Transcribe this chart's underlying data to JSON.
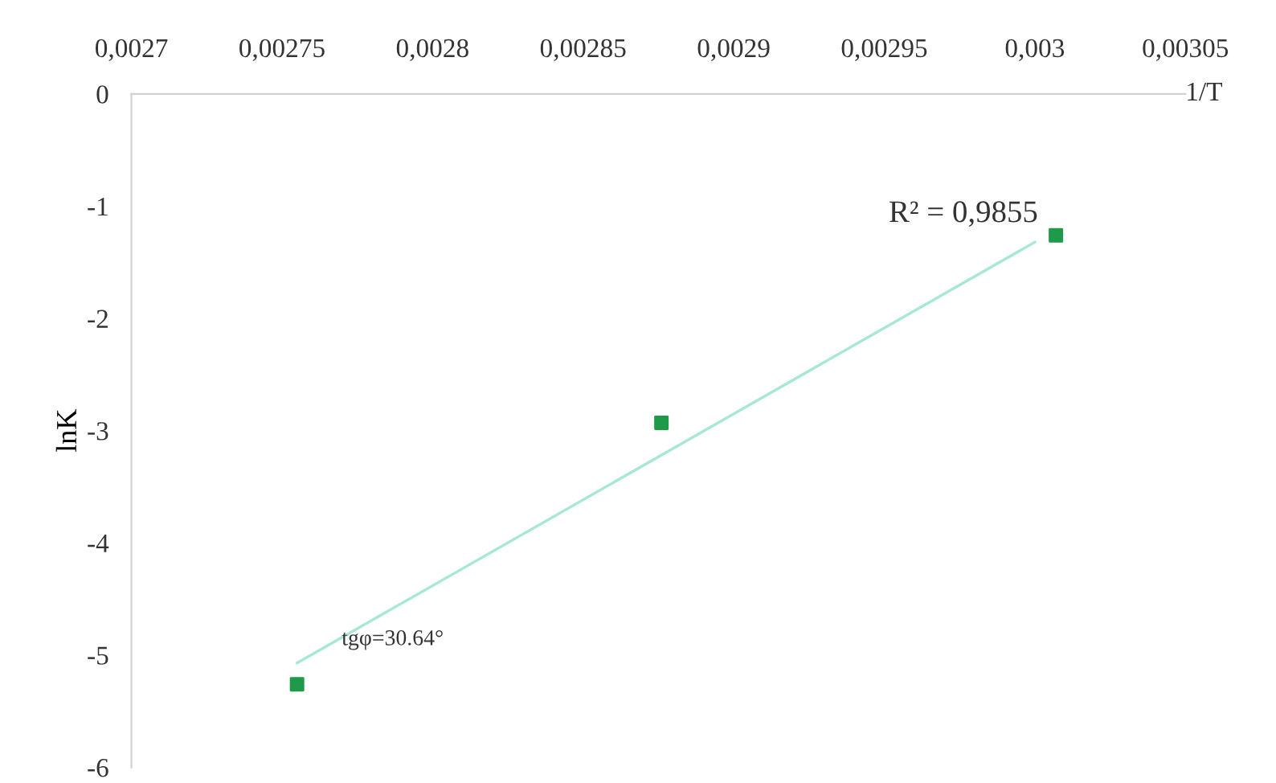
{
  "chart_data": {
    "type": "scatter",
    "xlabel": "1/T",
    "ylabel": "lnK",
    "xlim": [
      0.0027,
      0.00305
    ],
    "xticks": [
      {
        "value": 0.0027,
        "label": "0,0027"
      },
      {
        "value": 0.00275,
        "label": "0,00275"
      },
      {
        "value": 0.0028,
        "label": "0,0028"
      },
      {
        "value": 0.00285,
        "label": "0,00285"
      },
      {
        "value": 0.0029,
        "label": "0,0029"
      },
      {
        "value": 0.00295,
        "label": "0,00295"
      },
      {
        "value": 0.003,
        "label": "0,003"
      },
      {
        "value": 0.00305,
        "label": "0,00305"
      }
    ],
    "ylim": [
      -6,
      0
    ],
    "yticks": [
      -6,
      -5,
      -4,
      -3,
      -2,
      -1,
      0
    ],
    "grid": false,
    "legend": false,
    "series": [
      {
        "marker": "square",
        "color": "#1e9a4a",
        "x": [
          0.002755,
          0.002876,
          0.003007
        ],
        "values": [
          -5.26,
          -2.93,
          -1.26
        ]
      },
      {
        "type": "line",
        "marker": "none",
        "color": "#a6e8d2",
        "x": [
          0.002755,
          0.003
        ],
        "values": [
          -5.07,
          -1.32
        ]
      }
    ],
    "annotations": [
      {
        "text": "R² = 0,9855",
        "x": 0.003007,
        "y": -1.26
      },
      {
        "text": "tgφ=30.64°",
        "x": 0.002755,
        "y": -5.07
      }
    ]
  }
}
